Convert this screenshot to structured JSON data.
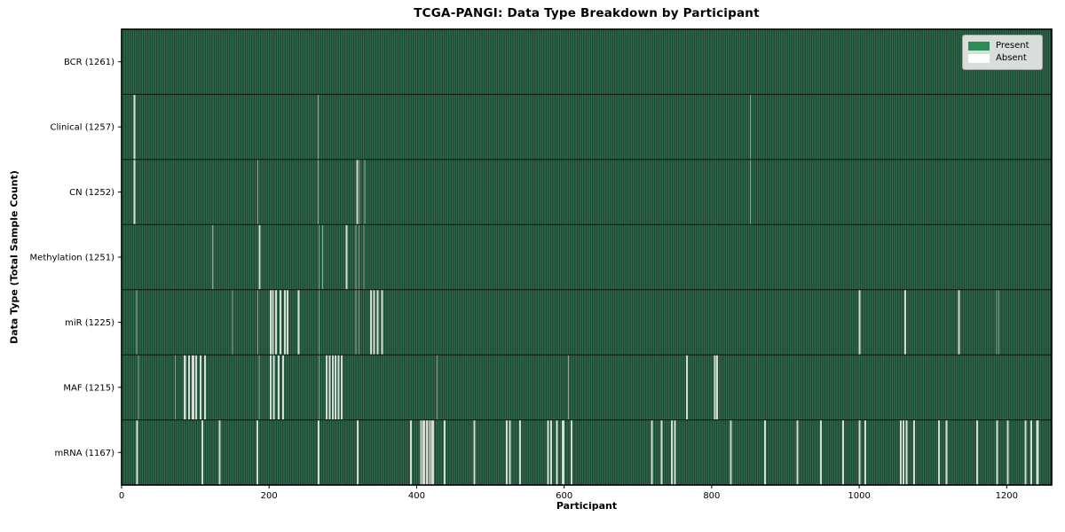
{
  "chart_data": {
    "type": "heatmap",
    "title": "TCGA-PANGI: Data Type Breakdown by Participant",
    "xlabel": "Participant",
    "ylabel": "Data Type (Total Sample Count)",
    "x_ticks": [
      0,
      200,
      400,
      600,
      800,
      1000,
      1200
    ],
    "x_range": [
      0,
      1261
    ],
    "total_participants": 1261,
    "grid": false,
    "legend_position": "upper right",
    "legend": [
      {
        "label": "Present",
        "color": "#2e8b57"
      },
      {
        "label": "Absent",
        "color": "#ffffff"
      }
    ],
    "colors": {
      "present_bar": "#2f7050",
      "bar_edge": "#1b3828",
      "absent_single": "#93a096",
      "absent_run": "#d5dbd5",
      "row_divider": "#0d1a12",
      "axis": "#000000",
      "legend_bg": "#d8ded9",
      "legend_border": "#a6a6a6",
      "figure_bg": "#ffffff"
    },
    "rows": [
      {
        "label": "BCR (1261)",
        "data_type": "BCR",
        "sample_count": 1261,
        "absent_participants": []
      },
      {
        "label": "Clinical (1257)",
        "data_type": "Clinical",
        "sample_count": 1257,
        "absent_participants": [
          16,
          17,
          266,
          852
        ]
      },
      {
        "label": "CN (1252)",
        "data_type": "CN",
        "sample_count": 1252,
        "absent_participants": [
          16,
          17,
          184,
          266,
          318,
          319,
          322,
          329,
          852
        ]
      },
      {
        "label": "Methylation (1251)",
        "data_type": "Methylation",
        "sample_count": 1251,
        "absent_participants": [
          123,
          186,
          187,
          267,
          272,
          304,
          305,
          317,
          321,
          328
        ]
      },
      {
        "label": "miR (1225)",
        "data_type": "miR",
        "sample_count": 1225,
        "absent_participants": [
          20,
          150,
          184,
          201,
          202,
          204,
          205,
          208,
          209,
          214,
          215,
          220,
          221,
          224,
          225,
          239,
          240,
          267,
          317,
          321,
          337,
          338,
          341,
          342,
          346,
          347,
          352,
          353,
          999,
          1000,
          1061,
          1062,
          1134,
          1135,
          1186,
          1189
        ]
      },
      {
        "label": "MAF (1215)",
        "data_type": "MAF",
        "sample_count": 1215,
        "absent_participants": [
          22,
          72,
          84,
          85,
          86,
          90,
          91,
          95,
          96,
          97,
          100,
          101,
          106,
          107,
          112,
          113,
          186,
          201,
          202,
          205,
          206,
          212,
          213,
          218,
          219,
          267,
          277,
          278,
          281,
          282,
          285,
          286,
          289,
          290,
          293,
          294,
          297,
          298,
          427,
          605,
          765,
          766,
          803,
          804,
          806,
          807
        ]
      },
      {
        "label": "mRNA (1167)",
        "data_type": "mRNA",
        "sample_count": 1167,
        "absent_participants": [
          20,
          21,
          108,
          109,
          132,
          133,
          183,
          184,
          266,
          267,
          319,
          320,
          391,
          392,
          405,
          406,
          408,
          409,
          410,
          413,
          414,
          417,
          418,
          420,
          421,
          422,
          437,
          438,
          477,
          478,
          521,
          522,
          525,
          526,
          539,
          540,
          577,
          578,
          581,
          582,
          589,
          590,
          597,
          598,
          599,
          609,
          610,
          718,
          719,
          731,
          732,
          745,
          746,
          749,
          750,
          825,
          826,
          871,
          872,
          915,
          916,
          947,
          948,
          977,
          978,
          999,
          1000,
          1007,
          1008,
          1055,
          1056,
          1059,
          1060,
          1063,
          1064,
          1073,
          1074,
          1107,
          1108,
          1117,
          1118,
          1159,
          1160,
          1186,
          1187,
          1200,
          1201,
          1224,
          1225,
          1232,
          1233,
          1240,
          1241,
          1242
        ]
      }
    ]
  }
}
